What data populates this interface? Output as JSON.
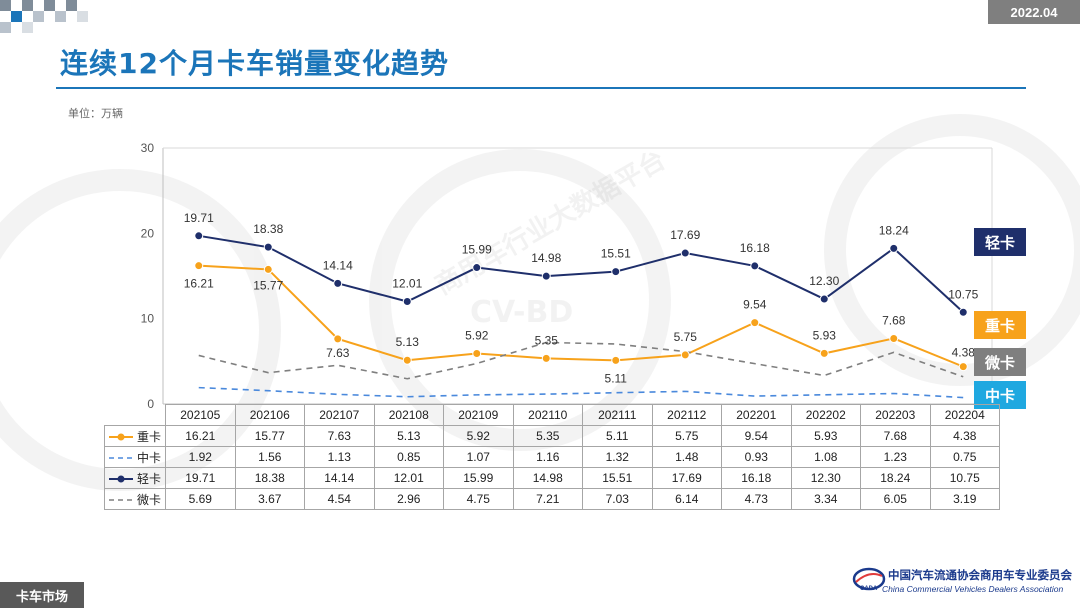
{
  "header": {
    "date": "2022.04",
    "title": "连续12个月卡车销量变化趋势",
    "unit": "单位：万辆"
  },
  "watermarks": [
    "商用车行业大数据平台",
    "CV-BD"
  ],
  "colors": {
    "heavy": "#f7a21b",
    "medium": "#4a89dc",
    "light": "#1f2f6b",
    "mini": "#7f7f7f",
    "title": "#1b75b9"
  },
  "side_labels": {
    "light": "轻卡",
    "heavy": "重卡",
    "mini": "微卡",
    "medium": "中卡"
  },
  "chart_data": {
    "type": "line",
    "categories": [
      "202105",
      "202106",
      "202107",
      "202108",
      "202109",
      "202110",
      "202111",
      "202112",
      "202201",
      "202202",
      "202203",
      "202204"
    ],
    "ylim": [
      0,
      30
    ],
    "yticks": [
      "0",
      "10",
      "20",
      "30"
    ],
    "ylabel": "",
    "grid": false,
    "series": [
      {
        "name": "重卡",
        "key": "heavy",
        "style": "solid-circle",
        "values": [
          16.21,
          15.77,
          7.63,
          5.13,
          5.92,
          5.35,
          5.11,
          5.75,
          9.54,
          5.93,
          7.68,
          4.38
        ],
        "labels": [
          "16.21",
          "15.77",
          "7.63",
          "5.13",
          "5.92",
          "5.35",
          "5.11",
          "5.75",
          "9.54",
          "5.93",
          "7.68",
          "4.38"
        ]
      },
      {
        "name": "中卡",
        "key": "medium",
        "style": "dash",
        "values": [
          1.92,
          1.56,
          1.13,
          0.85,
          1.07,
          1.16,
          1.32,
          1.48,
          0.93,
          1.08,
          1.23,
          0.75
        ],
        "labels": [
          "1.92",
          "1.56",
          "1.13",
          "0.85",
          "1.07",
          "1.16",
          "1.32",
          "1.48",
          "0.93",
          "1.08",
          "1.23",
          "0.75"
        ]
      },
      {
        "name": "轻卡",
        "key": "light",
        "style": "solid-circle",
        "values": [
          19.71,
          18.38,
          14.14,
          12.01,
          15.99,
          14.98,
          15.51,
          17.69,
          16.18,
          12.3,
          18.24,
          10.75
        ],
        "labels": [
          "19.71",
          "18.38",
          "14.14",
          "12.01",
          "15.99",
          "14.98",
          "15.51",
          "17.69",
          "16.18",
          "12.30",
          "18.24",
          "10.75"
        ]
      },
      {
        "name": "微卡",
        "key": "mini",
        "style": "dash",
        "values": [
          5.69,
          3.67,
          4.54,
          2.96,
          4.75,
          7.21,
          7.03,
          6.14,
          4.73,
          3.34,
          6.05,
          3.19
        ],
        "labels": [
          "5.69",
          "3.67",
          "4.54",
          "2.96",
          "4.75",
          "7.21",
          "7.03",
          "6.14",
          "4.73",
          "3.34",
          "6.05",
          "3.19"
        ]
      }
    ]
  },
  "footer": {
    "section": "卡车市场",
    "org_cn": "中国汽车流通协会商用车专业委员会",
    "org_en": "China Commercial Vehicles Dealers Association"
  }
}
